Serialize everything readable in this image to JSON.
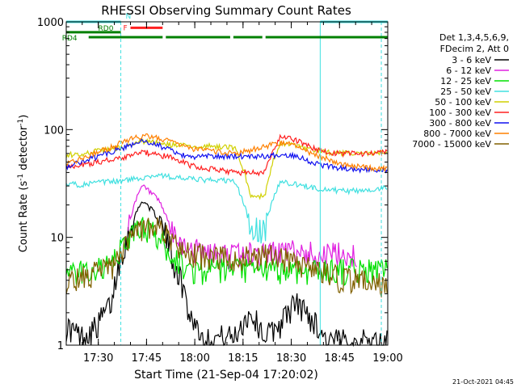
{
  "chart_data": {
    "type": "line",
    "title": "RHESSI Observing Summary Count Rates",
    "xlabel": "Start Time (21-Sep-04 17:20:02)",
    "ylabel_main": "Count Rate (s",
    "ylabel_exp1": "-1",
    "ylabel_mid": " detector",
    "ylabel_exp2": "-1",
    "ylabel_end": ")",
    "y_scale": "log",
    "ylim": [
      1,
      1000
    ],
    "xlim": [
      "17:20:02",
      "19:00:00"
    ],
    "x_ticks": [
      "17:30",
      "17:45",
      "18:00",
      "18:15",
      "18:30",
      "18:45",
      "19:00"
    ],
    "y_ticks": [
      "1",
      "10",
      "100",
      "1000"
    ],
    "footer_date": "21-Oct-2021 04:45",
    "legend_header": [
      "Det 1,3,4,5,6,9,",
      "FDecim 2, Att 0"
    ],
    "series": [
      {
        "name": "3 - 6 keV",
        "color": "#000000",
        "base": [
          1.5,
          1.2,
          1.5,
          2.5,
          10,
          22,
          15,
          6,
          2,
          1.1,
          1.2,
          1.2,
          2,
          1.2,
          1.6,
          2.5,
          1.8,
          1.1,
          1.1,
          1.1,
          1.1,
          1.1
        ]
      },
      {
        "name": "6 - 12 keV",
        "color": "#e020e0",
        "base": [
          null,
          null,
          null,
          null,
          12,
          30,
          22,
          10,
          8,
          7.2,
          7.0,
          7.0,
          7.2,
          7.2,
          7.4,
          7.4,
          7.2,
          7.0,
          7.0,
          7.0,
          null,
          null
        ]
      },
      {
        "name": "12 - 25 keV",
        "color": "#00e000",
        "base": [
          4.5,
          4.8,
          5.2,
          5.5,
          9.5,
          13,
          10,
          6.5,
          5.0,
          5.0,
          5.0,
          5.0,
          5.0,
          5.0,
          5.0,
          5.0,
          5.0,
          5.0,
          5.0,
          5.0,
          5.0,
          5.0
        ]
      },
      {
        "name": "25 - 50 keV",
        "color": "#40e0e0",
        "base": [
          31,
          31,
          32,
          33,
          34,
          36,
          38,
          36,
          35,
          34,
          34,
          33,
          12,
          12,
          33,
          31,
          29,
          28,
          27,
          27,
          28,
          29
        ]
      },
      {
        "name": "50 - 100 keV",
        "color": "#d0d000",
        "base": [
          58,
          60,
          63,
          66,
          70,
          78,
          75,
          72,
          70,
          70,
          70,
          68,
          24,
          24,
          76,
          70,
          65,
          62,
          60,
          60,
          60,
          61
        ]
      },
      {
        "name": "100 - 300 keV",
        "color": "#ff2020",
        "base": [
          44,
          47,
          50,
          53,
          56,
          62,
          58,
          55,
          47,
          44,
          42,
          40,
          40,
          40,
          85,
          80,
          68,
          62,
          60,
          60,
          60,
          62
        ]
      },
      {
        "name": "300 - 800 keV",
        "color": "#1010f0",
        "base": [
          45,
          50,
          56,
          63,
          70,
          78,
          72,
          62,
          55,
          57,
          56,
          57,
          57,
          57,
          58,
          58,
          50,
          46,
          44,
          43,
          42,
          42
        ]
      },
      {
        "name": "800 - 7000 keV",
        "color": "#ff8000",
        "base": [
          48,
          54,
          61,
          69,
          80,
          88,
          84,
          76,
          67,
          64,
          62,
          60,
          64,
          70,
          75,
          72,
          60,
          54,
          48,
          46,
          44,
          43
        ]
      },
      {
        "name": "7000 - 15000 keV",
        "color": "#806000",
        "base": [
          3.8,
          4.2,
          4.8,
          5.6,
          8.5,
          13,
          12,
          9,
          7.0,
          6.8,
          6.5,
          6.5,
          6.6,
          6.8,
          6.4,
          5.8,
          5.0,
          4.6,
          4.2,
          4.0,
          3.8,
          3.8
        ]
      }
    ],
    "flags": [
      {
        "label": "N",
        "color": "#40e0e0",
        "start": "17:20:02",
        "end": "17:37:00",
        "y_level": 1000
      },
      {
        "label": "N",
        "color": "#40e0e0",
        "start": "18:39:00",
        "end": "19:00:00",
        "y_level": 1000
      },
      {
        "label": "F",
        "color": "#ff2020",
        "start": "17:40:00",
        "end": "17:50:00",
        "y_level": 880
      },
      {
        "label": "RD0",
        "color": "#008000",
        "start": "17:20:02",
        "end": "17:37:00",
        "y_level": 800
      },
      {
        "label": "RD4",
        "color": "#008000",
        "start": "17:27:00",
        "end": "17:50:00",
        "y_level": 720
      }
    ]
  }
}
